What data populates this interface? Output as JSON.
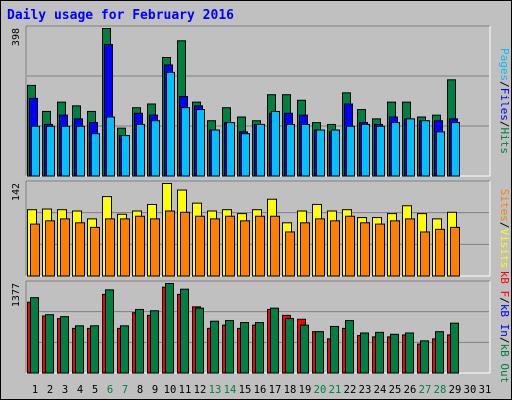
{
  "page": {
    "title": "Daily usage for February 2016"
  },
  "colors": {
    "background": "#c0c0c0",
    "hits": "#008040",
    "files": "#0000ff",
    "pages": "#00c0ff",
    "visits": "#ffff00",
    "sites": "#ff8000",
    "kb_in": "#ff0000",
    "kb_out": "#008040",
    "weekend_day": "#008040",
    "weekday": "#000000",
    "title": "#0000ff"
  },
  "chart_data": [
    {
      "type": "bar",
      "panel": "top",
      "max_label": "398",
      "ylim": [
        0,
        398
      ],
      "label_parts": [
        {
          "text": "Pages",
          "color": "#00c0ff"
        },
        {
          "text": "/",
          "color": "#000000"
        },
        {
          "text": "Files",
          "color": "#0000ff"
        },
        {
          "text": "/",
          "color": "#000000"
        },
        {
          "text": "Hits",
          "color": "#008040"
        }
      ],
      "categories": [
        "1",
        "2",
        "3",
        "4",
        "5",
        "6",
        "7",
        "8",
        "9",
        "10",
        "11",
        "12",
        "13",
        "14",
        "15",
        "16",
        "17",
        "18",
        "19",
        "20",
        "21",
        "22",
        "23",
        "24",
        "25",
        "26",
        "27",
        "28",
        "29",
        "30",
        "31"
      ],
      "series": [
        {
          "name": "Hits",
          "color": "#008040",
          "values": [
            245,
            175,
            200,
            190,
            175,
            398,
            130,
            185,
            195,
            320,
            365,
            200,
            150,
            185,
            160,
            150,
            220,
            220,
            205,
            145,
            140,
            225,
            180,
            155,
            200,
            200,
            160,
            165,
            260,
            null,
            null
          ]
        },
        {
          "name": "Files",
          "color": "#0000ff",
          "values": [
            210,
            140,
            165,
            155,
            145,
            355,
            110,
            170,
            165,
            300,
            215,
            190,
            125,
            145,
            120,
            140,
            170,
            170,
            165,
            125,
            120,
            195,
            145,
            140,
            160,
            155,
            150,
            150,
            155,
            null,
            null
          ]
        },
        {
          "name": "Pages",
          "color": "#00c0ff",
          "values": [
            135,
            135,
            135,
            135,
            115,
            160,
            110,
            140,
            150,
            280,
            185,
            180,
            125,
            145,
            115,
            140,
            175,
            140,
            140,
            125,
            125,
            135,
            140,
            135,
            145,
            155,
            150,
            120,
            145,
            null,
            null
          ]
        }
      ]
    },
    {
      "type": "bar",
      "panel": "middle",
      "max_label": "142",
      "ylim": [
        0,
        142
      ],
      "label_parts": [
        {
          "text": "Sites",
          "color": "#ff8000"
        },
        {
          "text": "/",
          "color": "#000000"
        },
        {
          "text": "Visits",
          "color": "#ffff00"
        }
      ],
      "categories": [
        "1",
        "2",
        "3",
        "4",
        "5",
        "6",
        "7",
        "8",
        "9",
        "10",
        "11",
        "12",
        "13",
        "14",
        "15",
        "16",
        "17",
        "18",
        "19",
        "20",
        "21",
        "22",
        "23",
        "24",
        "25",
        "26",
        "27",
        "28",
        "29",
        "30",
        "31"
      ],
      "series": [
        {
          "name": "Visits",
          "color": "#ffff00",
          "values": [
            102,
            103,
            102,
            100,
            88,
            122,
            95,
            100,
            110,
            142,
            132,
            112,
            100,
            102,
            96,
            102,
            118,
            82,
            100,
            110,
            100,
            102,
            90,
            90,
            96,
            108,
            96,
            88,
            98,
            null,
            null
          ]
        },
        {
          "name": "Sites",
          "color": "#ff8000",
          "values": [
            80,
            85,
            88,
            82,
            75,
            88,
            88,
            92,
            88,
            100,
            98,
            92,
            88,
            92,
            85,
            92,
            92,
            68,
            82,
            88,
            85,
            92,
            82,
            80,
            85,
            88,
            68,
            72,
            75,
            null,
            null
          ]
        }
      ]
    },
    {
      "type": "bar",
      "panel": "bottom",
      "max_label": "1377",
      "ylim": [
        0,
        1377
      ],
      "label_parts": [
        {
          "text": "kB F",
          "color": "#ff0000"
        },
        {
          "text": "/",
          "color": "#000000"
        },
        {
          "text": "kB In",
          "color": "#0000ff"
        },
        {
          "text": "/",
          "color": "#000000"
        },
        {
          "text": "kB Out",
          "color": "#008040"
        }
      ],
      "categories": [
        "1",
        "2",
        "3",
        "4",
        "5",
        "6",
        "7",
        "8",
        "9",
        "10",
        "11",
        "12",
        "13",
        "14",
        "15",
        "16",
        "17",
        "18",
        "19",
        "20",
        "21",
        "22",
        "23",
        "24",
        "25",
        "26",
        "27",
        "28",
        "29",
        "30",
        "31"
      ],
      "series": [
        {
          "name": "kB F",
          "color": "#ff0000",
          "values": [
            1090,
            880,
            840,
            690,
            690,
            1210,
            690,
            930,
            890,
            1320,
            1210,
            1020,
            690,
            740,
            690,
            740,
            980,
            890,
            830,
            640,
            530,
            690,
            580,
            560,
            560,
            590,
            450,
            530,
            590,
            null,
            null
          ]
        },
        {
          "name": "kB In",
          "color": "#0000ff",
          "values": [
            null,
            null,
            null,
            null,
            null,
            null,
            null,
            null,
            null,
            null,
            null,
            null,
            null,
            null,
            null,
            null,
            null,
            null,
            null,
            null,
            null,
            null,
            null,
            null,
            null,
            null,
            null,
            null,
            null,
            null,
            null
          ]
        },
        {
          "name": "kB Out",
          "color": "#008040",
          "values": [
            1160,
            900,
            870,
            730,
            730,
            1280,
            730,
            980,
            960,
            1377,
            1290,
            1000,
            800,
            810,
            780,
            780,
            1000,
            840,
            740,
            640,
            720,
            810,
            620,
            630,
            600,
            620,
            500,
            640,
            770,
            null,
            null
          ]
        }
      ]
    }
  ],
  "x_axis": {
    "days": [
      "1",
      "2",
      "3",
      "4",
      "5",
      "6",
      "7",
      "8",
      "9",
      "10",
      "11",
      "12",
      "13",
      "14",
      "15",
      "16",
      "17",
      "18",
      "19",
      "20",
      "21",
      "22",
      "23",
      "24",
      "25",
      "26",
      "27",
      "28",
      "29",
      "30",
      "31"
    ],
    "weekend_days": [
      "6",
      "7",
      "13",
      "14",
      "20",
      "21",
      "27",
      "28"
    ]
  }
}
